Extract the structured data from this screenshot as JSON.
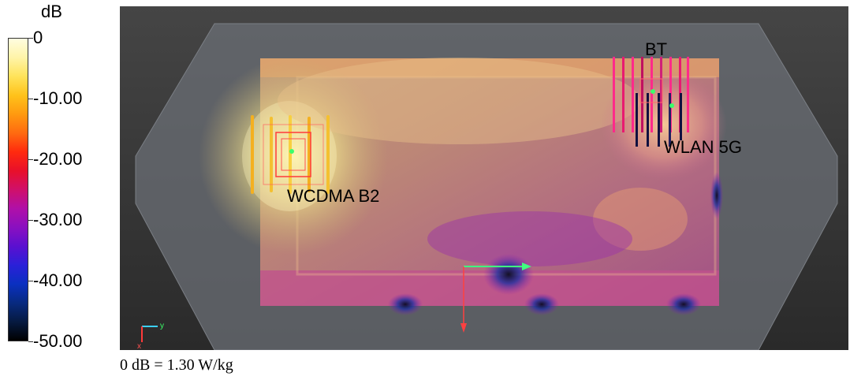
{
  "chart_data": {
    "type": "heatmap",
    "title": "",
    "colorbar": {
      "unit": "dB",
      "ticks": [
        "0",
        "-10.00",
        "-20.00",
        "-30.00",
        "-40.00",
        "-50.00"
      ],
      "range": [
        -50,
        0
      ],
      "stops": [
        "#fffde0",
        "#fff4a8",
        "#ffe35a",
        "#ffc21a",
        "#ff9a10",
        "#ff6a10",
        "#ff2a0e",
        "#e8102a",
        "#d0106a",
        "#b010a8",
        "#8a10c0",
        "#5a10d0",
        "#2a20d8",
        "#0a30c0",
        "#082a80",
        "#061a40",
        "#000000"
      ]
    },
    "annotations": [
      "BT",
      "WLAN 5G",
      "WCDMA B2"
    ],
    "axes_glyph": [
      "y",
      "x"
    ],
    "caption": "0 dB = 1.30 W/kg"
  }
}
